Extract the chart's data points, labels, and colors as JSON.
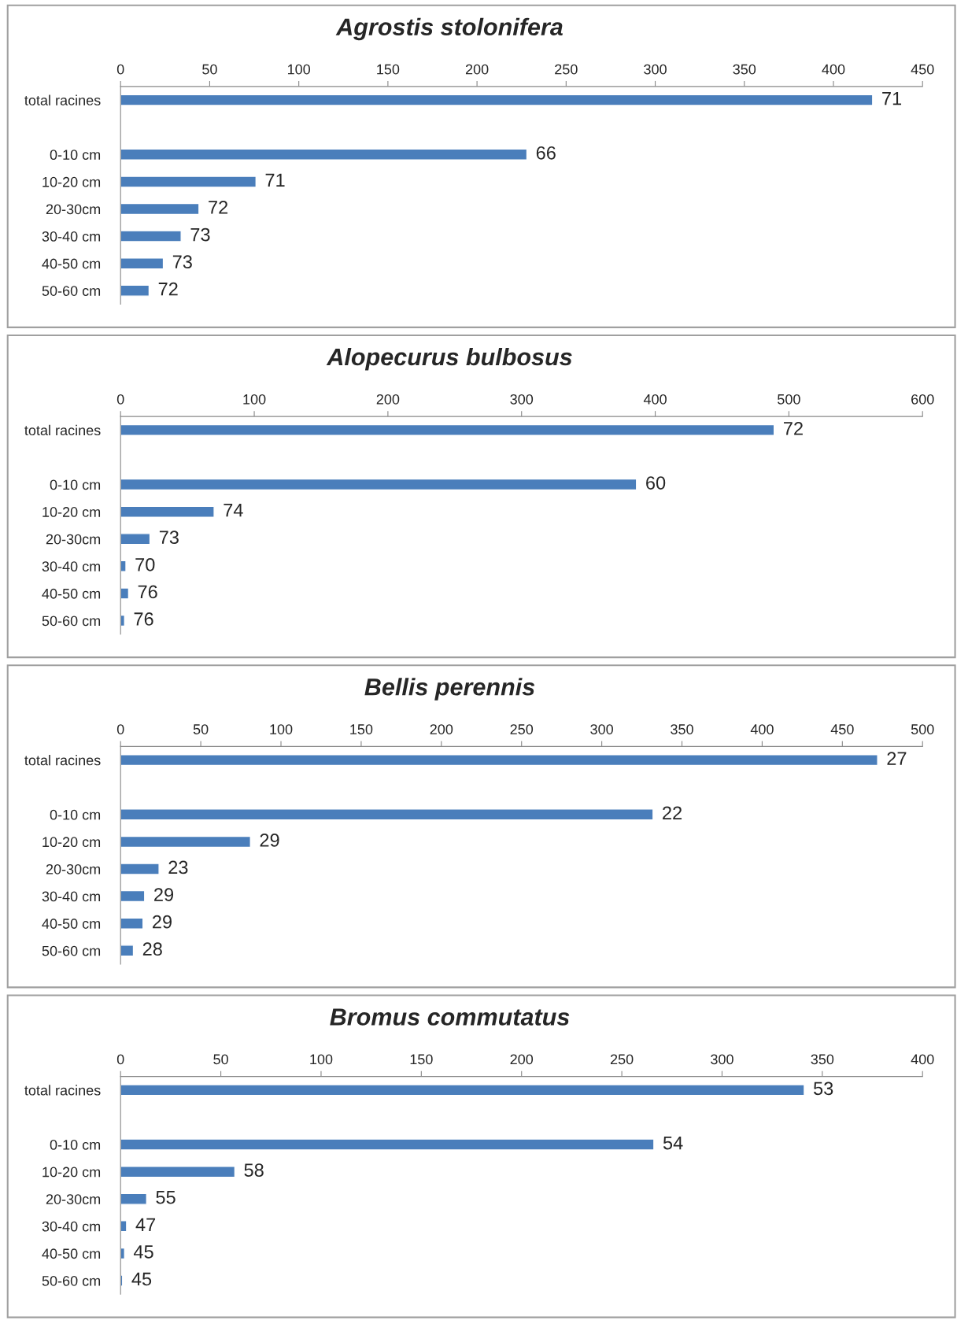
{
  "chart_data": [
    {
      "type": "bar",
      "orientation": "horizontal",
      "title": "Agrostis stolonifera",
      "categories": [
        "total racines",
        null,
        "0-10 cm",
        "10-20 cm",
        "20-30cm",
        "30-40 cm",
        "40-50 cm",
        "50-60 cm"
      ],
      "values": [
        422,
        null,
        228,
        76,
        44,
        34,
        24,
        16
      ],
      "color": "#4a7ebb",
      "xlim": [
        0,
        450
      ],
      "xticks": [
        0,
        50,
        100,
        150,
        200,
        250,
        300,
        350,
        400,
        450
      ],
      "annotations": [
        {
          "text": "71",
          "x": 422,
          "y": "total racines"
        },
        {
          "text": "66",
          "x": 228,
          "y": "0-10 cm"
        },
        {
          "text": "71",
          "x": 76,
          "y": "10-20 cm"
        },
        {
          "text": "72",
          "x": 44,
          "y": "20-30cm"
        },
        {
          "text": "73",
          "x": 34,
          "y": "30-40 cm"
        },
        {
          "text": "73",
          "x": 24,
          "y": "40-50 cm"
        },
        {
          "text": "72",
          "x": 16,
          "y": "50-60 cm"
        }
      ]
    },
    {
      "type": "bar",
      "orientation": "horizontal",
      "title": "Alopecurus bulbosus",
      "categories": [
        "total racines",
        null,
        "0-10 cm",
        "10-20 cm",
        "20-30cm",
        "30-40 cm",
        "40-50 cm",
        "50-60 cm"
      ],
      "values": [
        489,
        null,
        386,
        70,
        22,
        4,
        6,
        3
      ],
      "color": "#4a7ebb",
      "xlim": [
        0,
        600
      ],
      "xticks": [
        0,
        100,
        200,
        300,
        400,
        500,
        600
      ],
      "annotations": [
        {
          "text": "72",
          "x": 489,
          "y": "total racines"
        },
        {
          "text": "60",
          "x": 386,
          "y": "0-10 cm"
        },
        {
          "text": "74",
          "x": 70,
          "y": "10-20 cm"
        },
        {
          "text": "73",
          "x": 22,
          "y": "20-30cm"
        },
        {
          "text": "70",
          "x": 4,
          "y": "30-40 cm"
        },
        {
          "text": "76",
          "x": 6,
          "y": "40-50 cm"
        },
        {
          "text": "76",
          "x": 3,
          "y": "50-60 cm"
        }
      ]
    },
    {
      "type": "bar",
      "orientation": "horizontal",
      "title": "Bellis perennis",
      "categories": [
        "total racines",
        null,
        "0-10 cm",
        "10-20 cm",
        "20-30cm",
        "30-40 cm",
        "40-50 cm",
        "50-60 cm"
      ],
      "values": [
        472,
        null,
        332,
        81,
        24,
        15,
        14,
        8
      ],
      "color": "#4a7ebb",
      "xlim": [
        0,
        500
      ],
      "xticks": [
        0,
        50,
        100,
        150,
        200,
        250,
        300,
        350,
        400,
        450,
        500
      ],
      "annotations": [
        {
          "text": "27",
          "x": 472,
          "y": "total racines"
        },
        {
          "text": "22",
          "x": 332,
          "y": "0-10 cm"
        },
        {
          "text": "29",
          "x": 81,
          "y": "10-20 cm"
        },
        {
          "text": "23",
          "x": 24,
          "y": "20-30cm"
        },
        {
          "text": "29",
          "x": 15,
          "y": "30-40 cm"
        },
        {
          "text": "29",
          "x": 14,
          "y": "40-50 cm"
        },
        {
          "text": "28",
          "x": 8,
          "y": "50-60 cm"
        }
      ]
    },
    {
      "type": "bar",
      "orientation": "horizontal",
      "title": "Bromus commutatus",
      "categories": [
        "total racines",
        null,
        "0-10 cm",
        "10-20 cm",
        "20-30cm",
        "30-40 cm",
        "40-50 cm",
        "50-60 cm"
      ],
      "values": [
        341,
        null,
        266,
        57,
        13,
        3,
        2,
        1
      ],
      "color": "#4a7ebb",
      "xlim": [
        0,
        400
      ],
      "xticks": [
        0,
        50,
        100,
        150,
        200,
        250,
        300,
        350,
        400
      ],
      "annotations": [
        {
          "text": "53",
          "x": 341,
          "y": "total racines"
        },
        {
          "text": "54",
          "x": 266,
          "y": "0-10 cm"
        },
        {
          "text": "58",
          "x": 57,
          "y": "10-20 cm"
        },
        {
          "text": "55",
          "x": 13,
          "y": "20-30cm"
        },
        {
          "text": "47",
          "x": 3,
          "y": "30-40 cm"
        },
        {
          "text": "45",
          "x": 2,
          "y": "40-50 cm"
        },
        {
          "text": "45",
          "x": 1,
          "y": "50-60 cm"
        }
      ]
    }
  ]
}
